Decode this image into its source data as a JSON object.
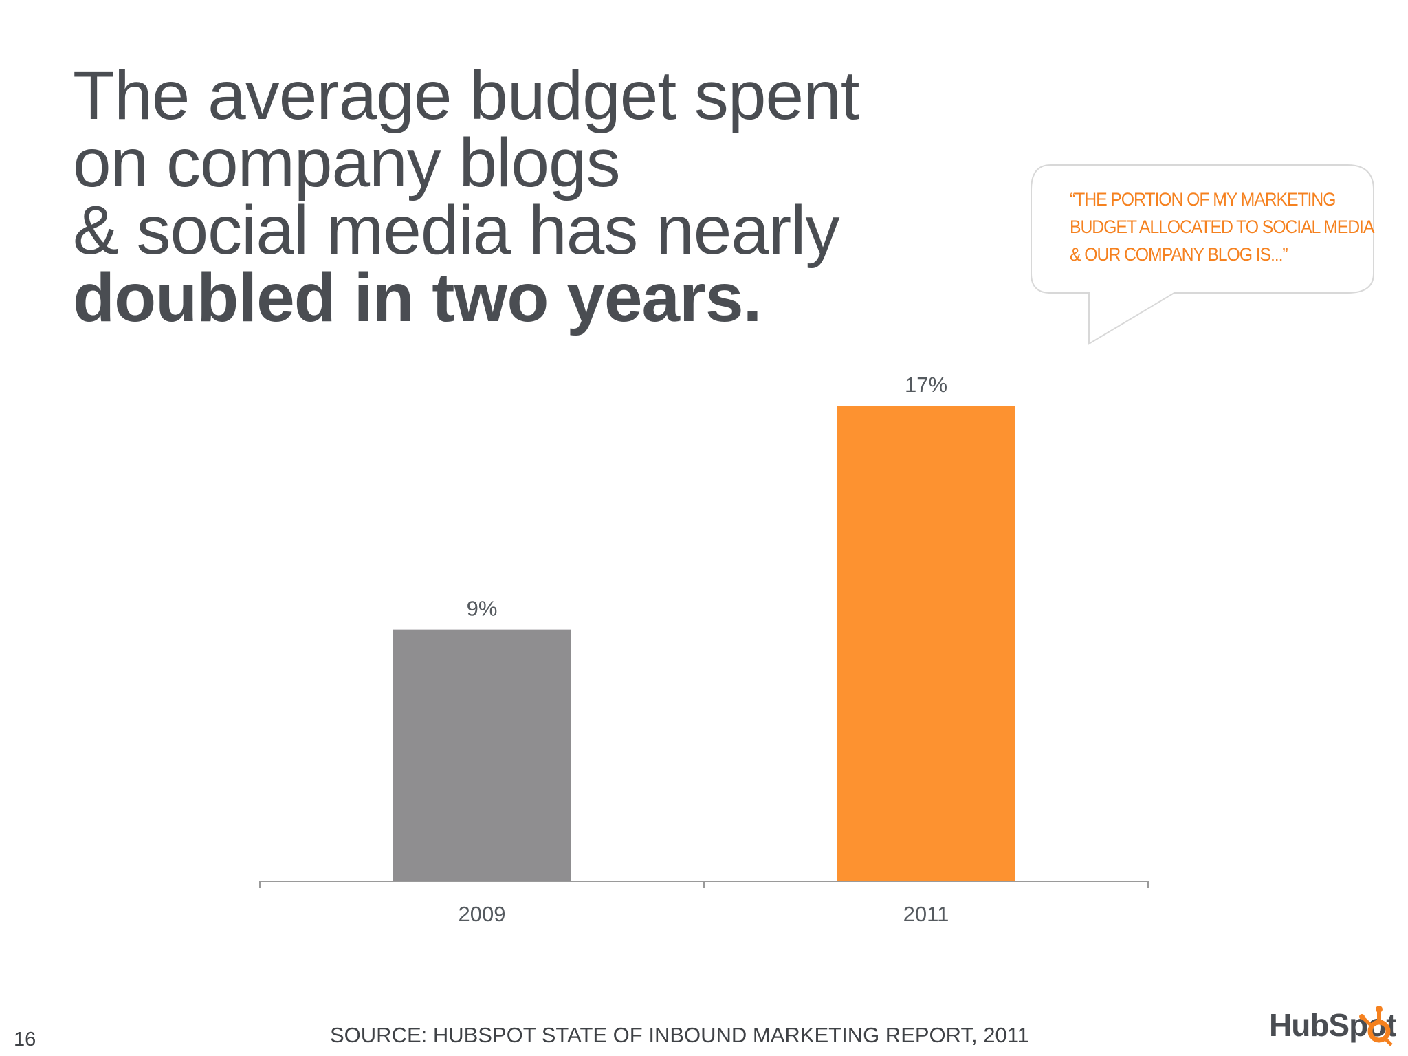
{
  "headline": {
    "line1": "The average budget spent",
    "line2": "on company blogs",
    "line3": "& social media has nearly",
    "line4_bold": "doubled in two years."
  },
  "callout": {
    "line1": "“THE PORTION OF MY MARKETING",
    "line2": "BUDGET ALLOCATED TO SOCIAL MEDIA",
    "line3": "& OUR COMPANY BLOG IS...”"
  },
  "chart_data": {
    "type": "bar",
    "categories": [
      "2009",
      "2011"
    ],
    "values": [
      9,
      17
    ],
    "data_labels": [
      "9%",
      "17%"
    ],
    "title": "",
    "xlabel": "",
    "ylabel": "",
    "ylim": [
      0,
      17
    ],
    "grid": false,
    "legend": "none",
    "colors": [
      "#8f8e90",
      "#fd9230"
    ]
  },
  "footer": {
    "source": "SOURCE: HUBSPOT STATE OF INBOUND MARKETING REPORT, 2011",
    "page_number": "16"
  },
  "logo": {
    "text": "HubSpot",
    "icon": "hubspot-sprocket-icon",
    "accent": "#f5811f"
  }
}
